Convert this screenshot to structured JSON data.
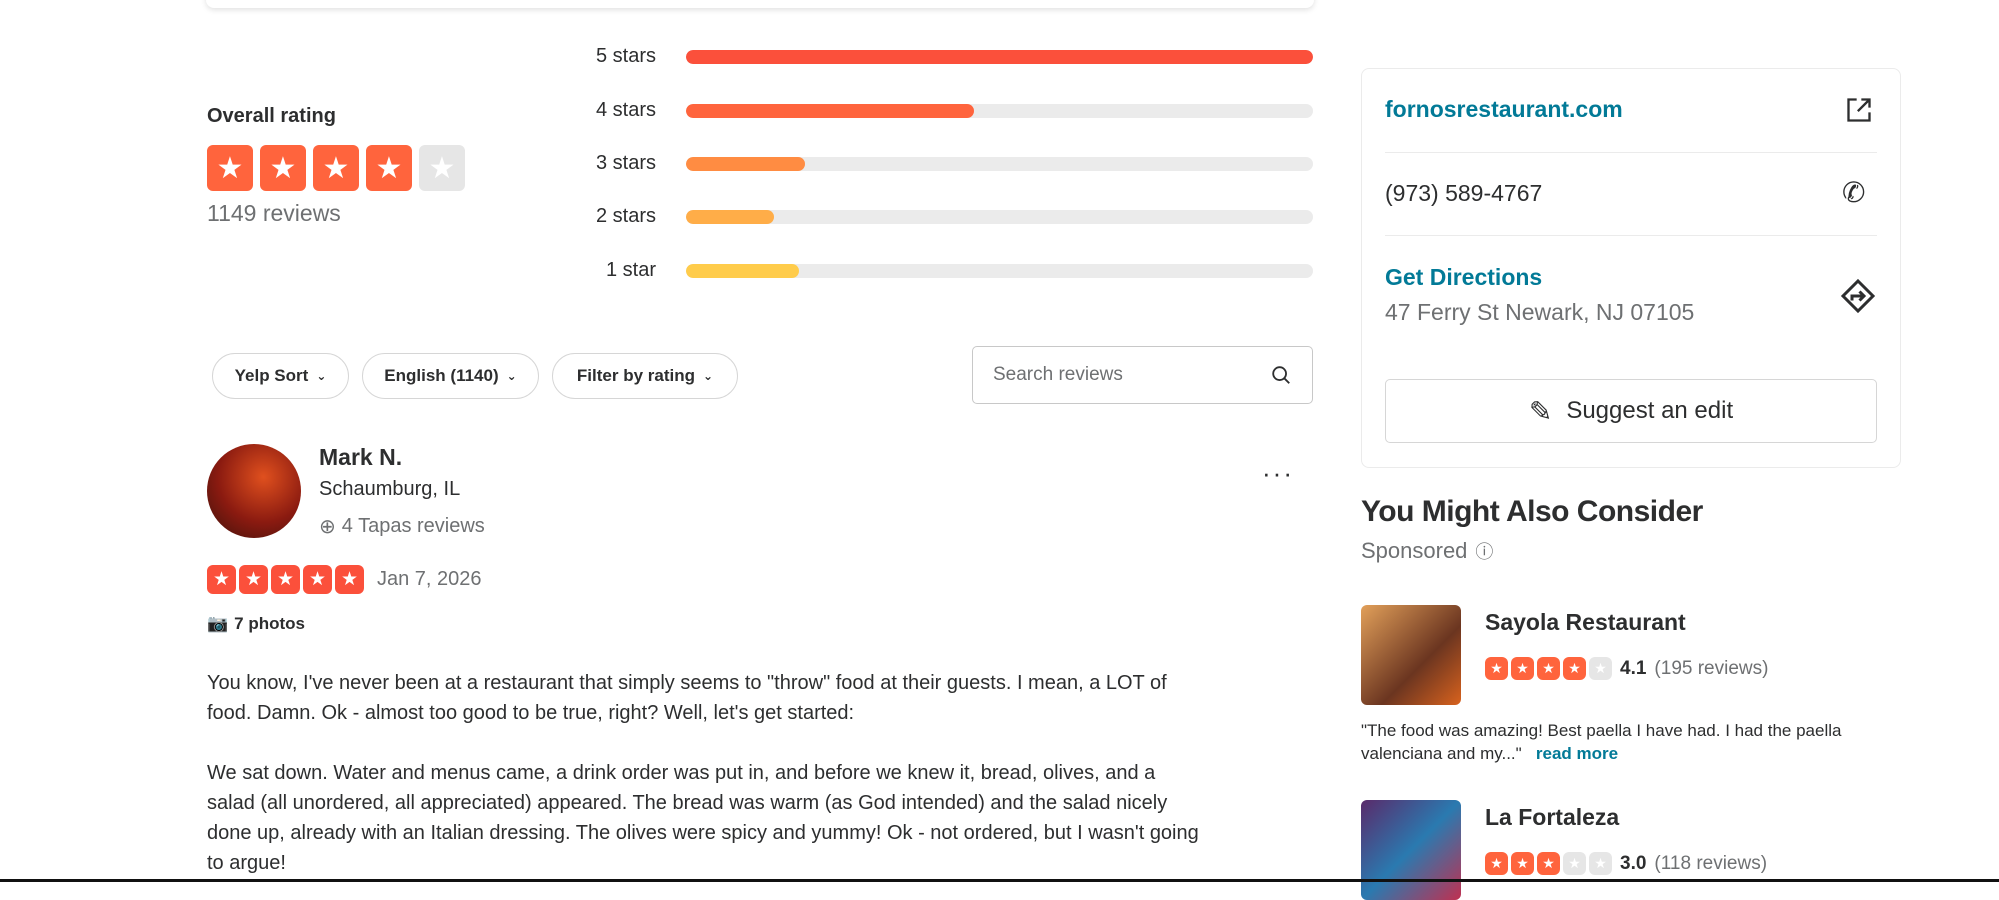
{
  "rating": {
    "label": "Overall rating",
    "stars": 4,
    "review_count": "1149 reviews",
    "distribution": [
      {
        "label": "5 stars",
        "fraction": 1.0,
        "color": "#fb503b"
      },
      {
        "label": "4 stars",
        "fraction": 0.46,
        "color": "#ff643d"
      },
      {
        "label": "3 stars",
        "fraction": 0.19,
        "color": "#ff8c42"
      },
      {
        "label": "2 stars",
        "fraction": 0.14,
        "color": "#ffad48"
      },
      {
        "label": "1 star",
        "fraction": 0.18,
        "color": "#ffcc4b"
      }
    ]
  },
  "filters": {
    "sort": "Yelp Sort",
    "language": "English (1140)",
    "rating_filter": "Filter by rating",
    "search_placeholder": "Search reviews"
  },
  "review": {
    "name": "Mark N.",
    "location": "Schaumburg, IL",
    "badge": "4 Tapas reviews",
    "stars": 5,
    "date": "Jan 7, 2026",
    "photos": "7 photos",
    "paragraphs": [
      "You know, I've never been at a restaurant that simply seems to \"throw\" food at their guests. I mean, a LOT of food. Damn. Ok - almost too good to be true, right? Well, let's get started:",
      "We sat down. Water and menus came, a drink order was put in, and before we knew it, bread, olives, and a salad (all unordered, all appreciated) appeared. The bread was warm (as God intended) and the salad nicely done up, already with an Italian dressing. The olives were spicy and yummy! Ok - not ordered, but I wasn't going to argue!"
    ]
  },
  "sidebar": {
    "website": "fornosrestaurant.com",
    "phone": "(973) 589-4767",
    "directions_label": "Get Directions",
    "address": "47 Ferry St Newark, NJ 07105",
    "suggest_edit": "Suggest an edit",
    "consider_title": "You Might Also Consider",
    "sponsored": "Sponsored",
    "suggestions": [
      {
        "name": "Sayola Restaurant",
        "stars": 4,
        "rating": "4.1",
        "reviews": "(195 reviews)",
        "quote": "\"The food was amazing! Best paella I have had. I had the paella valenciana and my...\"",
        "read_more": "read more"
      },
      {
        "name": "La Fortaleza",
        "stars": 3,
        "rating": "3.0",
        "reviews": "(118 reviews)"
      }
    ]
  },
  "colors": {
    "accent": "#fb503b",
    "link": "#027a97",
    "star_orange": "#ff643d",
    "star_empty": "#e6e6e6"
  }
}
